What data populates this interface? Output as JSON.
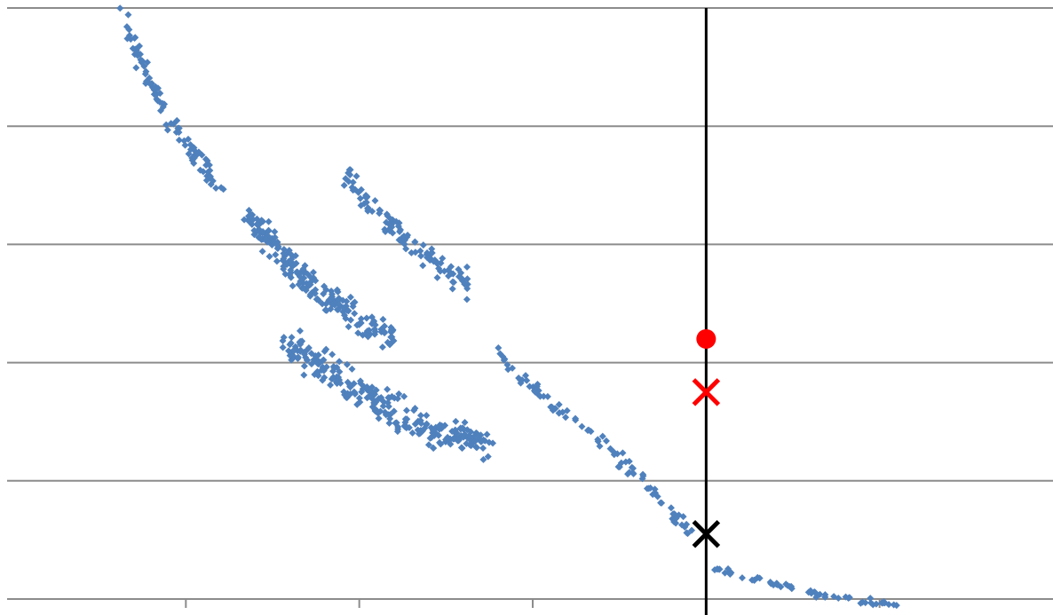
{
  "chart_data": {
    "type": "scatter",
    "title": "",
    "xlabel": "",
    "ylabel": "",
    "xlim": [
      0,
      6
    ],
    "ylim": [
      0,
      5
    ],
    "x_ticks": [
      1,
      2,
      3,
      4,
      5
    ],
    "y_gridlines": [
      1,
      2,
      3,
      4,
      5
    ],
    "grid": "horizontal",
    "legend": "none",
    "colors": {
      "points": "#4f81bd",
      "grid": "#8c8c8c",
      "reference_line": "#000000",
      "red_markers": "#ff0000",
      "black_marker": "#000000"
    },
    "series": [
      {
        "marker": "diamond",
        "clusters": [
          {
            "x": [
              0.64,
              0.72,
              0.82,
              0.95,
              1.08,
              1.22
            ],
            "y": [
              4.96,
              4.6,
              4.3,
              3.95,
              3.7,
              3.45
            ]
          },
          {
            "x": [
              1.35,
              1.45,
              1.55,
              1.65,
              1.75,
              1.9,
              2.05,
              2.2
            ],
            "y": [
              3.25,
              3.1,
              2.9,
              2.75,
              2.6,
              2.45,
              2.3,
              2.2
            ]
          },
          {
            "x": [
              1.55,
              1.7,
              1.85,
              2.0,
              2.15,
              2.3,
              2.45,
              2.6,
              2.75
            ],
            "y": [
              2.2,
              2.05,
              1.9,
              1.75,
              1.62,
              1.5,
              1.42,
              1.36,
              1.3
            ]
          },
          {
            "x": [
              1.92,
              2.05,
              2.2,
              2.35,
              2.5,
              2.65
            ],
            "y": [
              3.6,
              3.35,
              3.15,
              2.95,
              2.75,
              2.65
            ]
          },
          {
            "x": [
              2.8,
              2.95,
              3.1,
              3.3,
              3.5,
              3.65,
              3.8,
              3.95
            ],
            "y": [
              2.1,
              1.85,
              1.65,
              1.45,
              1.2,
              1.0,
              0.72,
              0.55
            ]
          },
          {
            "x": [
              4.0,
              4.2,
              4.4,
              4.6,
              4.8,
              5.0,
              5.1
            ],
            "y": [
              0.3,
              0.2,
              0.12,
              0.06,
              0.0,
              -0.03,
              -0.06
            ]
          }
        ]
      }
    ],
    "reference_line": {
      "x": 4.0
    },
    "markers": [
      {
        "shape": "circle",
        "color": "#ff0000",
        "x": 4.0,
        "y": 2.2
      },
      {
        "shape": "x",
        "color": "#ff0000",
        "x": 4.0,
        "y": 1.75
      },
      {
        "shape": "x",
        "color": "#000000",
        "x": 4.0,
        "y": 0.55
      }
    ]
  }
}
